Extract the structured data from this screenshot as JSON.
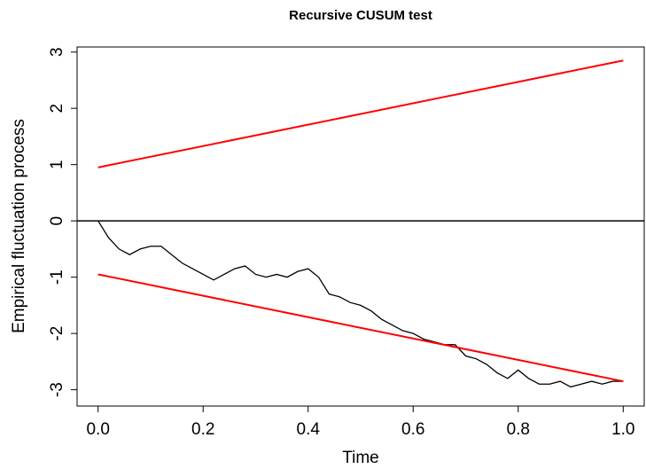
{
  "chart_data": {
    "type": "line",
    "title": "Recursive CUSUM test",
    "xlabel": "Time",
    "ylabel": "Empirical fluctuation process",
    "xlim": [
      -0.04,
      1.04
    ],
    "ylim": [
      -3.29,
      3.09
    ],
    "xticks": [
      {
        "value": 0,
        "label": "0.0"
      },
      0.2,
      0.4,
      0.6,
      0.8,
      {
        "value": 1,
        "label": "1.0"
      }
    ],
    "yticks": [
      -3,
      -2,
      -1,
      0,
      1,
      2,
      3
    ],
    "hlines": [
      0
    ],
    "series": [
      {
        "color": "#000000",
        "x": [
          0,
          0.02,
          0.04,
          0.06,
          0.08,
          0.1,
          0.12,
          0.14,
          0.16,
          0.18,
          0.2,
          0.22,
          0.24,
          0.26,
          0.28,
          0.3,
          0.32,
          0.34,
          0.36,
          0.38,
          0.4,
          0.42,
          0.44,
          0.46,
          0.48,
          0.5,
          0.52,
          0.54,
          0.56,
          0.58,
          0.6,
          0.62,
          0.64,
          0.66,
          0.68,
          0.7,
          0.72,
          0.74,
          0.76,
          0.78,
          0.8,
          0.82,
          0.84,
          0.86,
          0.88,
          0.9,
          0.92,
          0.94,
          0.96,
          0.98,
          1
        ],
        "values": [
          0,
          -0.3,
          -0.5,
          -0.6,
          -0.5,
          -0.45,
          -0.45,
          -0.6,
          -0.75,
          -0.85,
          -0.95,
          -1.05,
          -0.95,
          -0.85,
          -0.8,
          -0.95,
          -1.0,
          -0.95,
          -1.0,
          -0.9,
          -0.85,
          -1.0,
          -1.3,
          -1.35,
          -1.45,
          -1.5,
          -1.6,
          -1.75,
          -1.85,
          -1.95,
          -2.0,
          -2.1,
          -2.15,
          -2.2,
          -2.2,
          -2.4,
          -2.45,
          -2.55,
          -2.7,
          -2.8,
          -2.65,
          -2.8,
          -2.9,
          -2.9,
          -2.85,
          -2.95,
          -2.9,
          -2.85,
          -2.9,
          -2.85,
          -2.85
        ]
      },
      {
        "color": "#ff0000",
        "x": [
          0,
          1
        ],
        "values": [
          0.95,
          2.85
        ]
      },
      {
        "color": "#ff0000",
        "x": [
          0,
          1
        ],
        "values": [
          -0.95,
          -2.85
        ]
      }
    ]
  }
}
